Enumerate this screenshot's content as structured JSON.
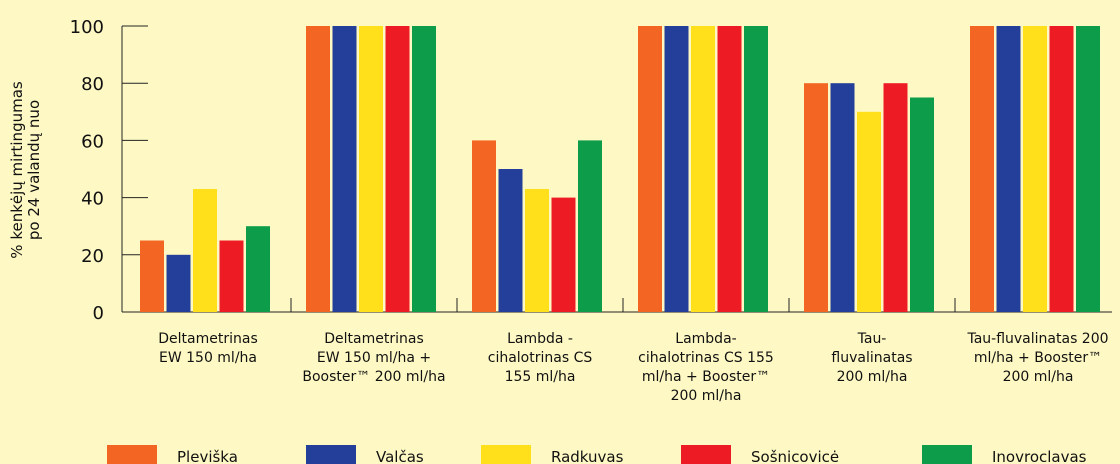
{
  "chart_data": {
    "type": "bar",
    "ylabel_lines": [
      "% kenkėjų mirtingumas",
      "po 24 valandų nuo"
    ],
    "ylim": [
      0,
      100
    ],
    "yticks": [
      "0",
      "20",
      "40",
      "60",
      "80",
      "100"
    ],
    "grid": false,
    "legend_position": "bottom",
    "categories": [
      [
        "Deltametrinas",
        "EW 150 ml/ha"
      ],
      [
        "Deltametrinas",
        "EW 150 ml/ha +",
        "Booster™ 200 ml/ha"
      ],
      [
        "Lambda -",
        "cihalotrinas CS",
        "155 ml/ha"
      ],
      [
        "Lambda-",
        "cihalotrinas CS 155",
        "ml/ha + Booster™",
        "200 ml/ha"
      ],
      [
        "Tau-",
        "fluvalinatas",
        "200 ml/ha"
      ],
      [
        "Tau-fluvalinatas 200",
        "ml/ha + Booster™",
        "200 ml/ha"
      ]
    ],
    "series": [
      {
        "name": "Pleviška",
        "color": "#f26522",
        "values": [
          25,
          100,
          60,
          100,
          80,
          100
        ]
      },
      {
        "name": "Valčas",
        "color": "#233f99",
        "values": [
          20,
          100,
          50,
          100,
          80,
          100
        ]
      },
      {
        "name": "Radkuvas",
        "color": "#ffe01a",
        "values": [
          43,
          100,
          43,
          100,
          70,
          100
        ]
      },
      {
        "name": "Sošnicovicė",
        "color": "#ed1c24",
        "values": [
          25,
          100,
          40,
          100,
          80,
          100
        ]
      },
      {
        "name": "Inovroclavas",
        "color": "#0c9c4a",
        "values": [
          30,
          100,
          60,
          100,
          75,
          100
        ]
      }
    ]
  }
}
